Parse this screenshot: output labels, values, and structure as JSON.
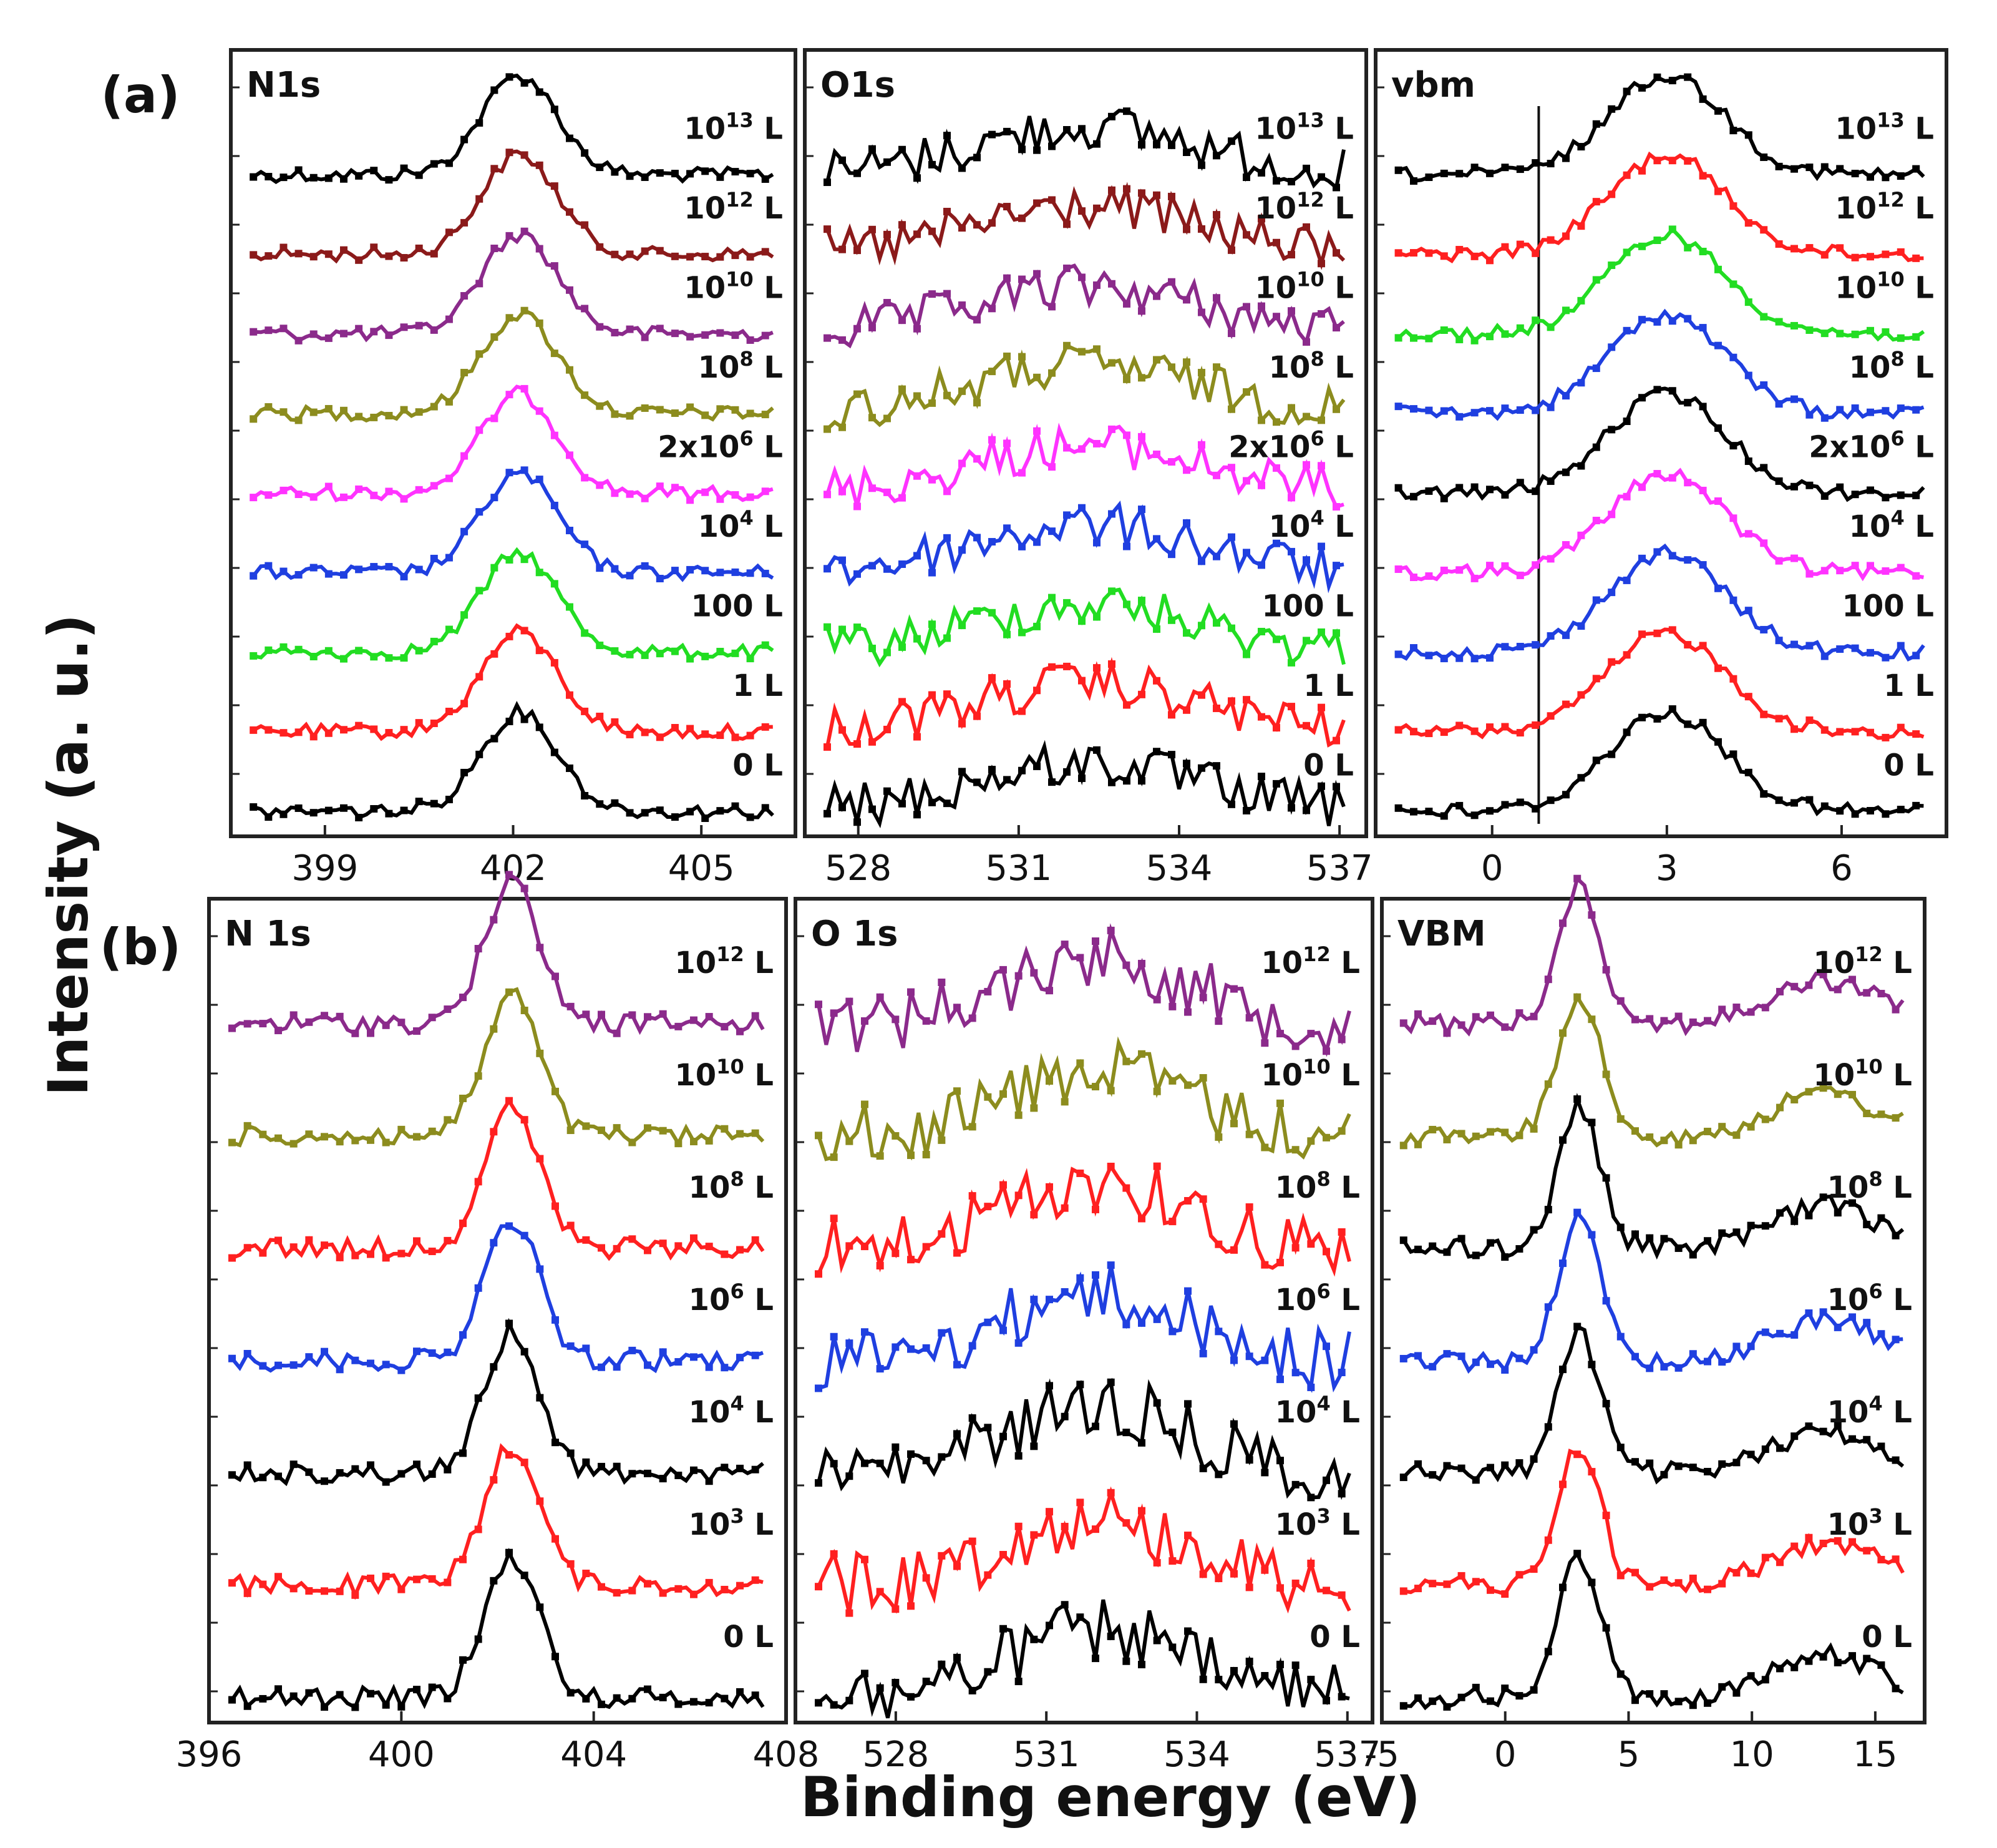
{
  "figure": {
    "xlabel": "Binding energy (eV)",
    "ylabel": "Intensity (a. u.)"
  },
  "chart_data": [
    {
      "type": "line",
      "row": "(a)",
      "title": "N1s",
      "xlim": [
        397.5,
        406.5
      ],
      "xticks": [
        399,
        402,
        405
      ],
      "center": 402.1,
      "width": 0.85,
      "shoulder": 0,
      "series": [
        {
          "name": "10^13 L",
          "color": "#000000"
        },
        {
          "name": "10^12 L",
          "color": "#8b1a1a"
        },
        {
          "name": "10^10 L",
          "color": "#8b2a8b"
        },
        {
          "name": "10^8 L",
          "color": "#8c8c1e"
        },
        {
          "name": "2x10^6 L",
          "color": "#ff33ff"
        },
        {
          "name": "10^4 L",
          "color": "#1f3fe0"
        },
        {
          "name": "100 L",
          "color": "#22dd22"
        },
        {
          "name": "1 L",
          "color": "#ff2020"
        },
        {
          "name": "0 L",
          "color": "#000000"
        }
      ]
    },
    {
      "type": "line",
      "row": "(a)",
      "title": "O1s",
      "xlim": [
        527,
        537.5
      ],
      "xticks": [
        528,
        531,
        534,
        537
      ],
      "center": 532.3,
      "width": 3.0,
      "shoulder": 0,
      "series": [
        {
          "name": "10^13 L",
          "color": "#000000"
        },
        {
          "name": "10^12 L",
          "color": "#8b1a1a"
        },
        {
          "name": "10^10 L",
          "color": "#8b2a8b"
        },
        {
          "name": "10^8 L",
          "color": "#8c8c1e"
        },
        {
          "name": "2x10^6 L",
          "color": "#ff33ff"
        },
        {
          "name": "10^4 L",
          "color": "#1f3fe0"
        },
        {
          "name": "100 L",
          "color": "#22dd22"
        },
        {
          "name": "1 L",
          "color": "#ff2020"
        },
        {
          "name": "0 L",
          "color": "#000000"
        }
      ]
    },
    {
      "type": "line",
      "row": "(a)",
      "title": "vbm",
      "xlim": [
        -2,
        7.8
      ],
      "xticks": [
        0,
        3,
        6
      ],
      "center": 3.0,
      "width": 1.4,
      "shoulder": 0,
      "vline": 0.8,
      "series": [
        {
          "name": "10^13 L",
          "color": "#000000"
        },
        {
          "name": "10^12 L",
          "color": "#ff2020"
        },
        {
          "name": "10^10 L",
          "color": "#22dd22"
        },
        {
          "name": "10^8 L",
          "color": "#1f3fe0"
        },
        {
          "name": "2x10^6 L",
          "color": "#000000"
        },
        {
          "name": "10^4 L",
          "color": "#ff33ff"
        },
        {
          "name": "100 L",
          "color": "#1f3fe0"
        },
        {
          "name": "1 L",
          "color": "#ff2020"
        },
        {
          "name": "0 L",
          "color": "#000000"
        }
      ]
    },
    {
      "type": "line",
      "row": "(b)",
      "title": "N 1s",
      "xlim": [
        396,
        408
      ],
      "xticks": [
        396,
        400,
        404,
        408
      ],
      "center": 402.3,
      "width": 0.8,
      "shoulder": 0,
      "series": [
        {
          "name": "10^12 L",
          "color": "#8b2a8b"
        },
        {
          "name": "10^10 L",
          "color": "#8c8c1e"
        },
        {
          "name": "10^8 L",
          "color": "#ff2020"
        },
        {
          "name": "10^6 L",
          "color": "#1f3fe0"
        },
        {
          "name": "10^4 L",
          "color": "#000000"
        },
        {
          "name": "10^3 L",
          "color": "#ff2020"
        },
        {
          "name": "0 L",
          "color": "#000000"
        }
      ]
    },
    {
      "type": "line",
      "row": "(b)",
      "title": "O 1s",
      "xlim": [
        526,
        537.5
      ],
      "xticks": [
        528,
        531,
        534,
        537
      ],
      "center": 532,
      "width": 2.5,
      "shoulder": 0,
      "series": [
        {
          "name": "10^12 L",
          "color": "#8b2a8b"
        },
        {
          "name": "10^10 L",
          "color": "#8c8c1e"
        },
        {
          "name": "10^8 L",
          "color": "#ff2020"
        },
        {
          "name": "10^6 L",
          "color": "#1f3fe0"
        },
        {
          "name": "10^4 L",
          "color": "#000000"
        },
        {
          "name": "10^3 L",
          "color": "#ff2020"
        },
        {
          "name": "0 L",
          "color": "#000000"
        }
      ]
    },
    {
      "type": "line",
      "row": "(b)",
      "title": "VBM",
      "xlim": [
        -5,
        17
      ],
      "xticks": [
        -5,
        0,
        5,
        10,
        15
      ],
      "center": 3.0,
      "width": 1.2,
      "shoulder": 13,
      "series": [
        {
          "name": "10^12 L",
          "color": "#8b2a8b"
        },
        {
          "name": "10^10 L",
          "color": "#8c8c1e"
        },
        {
          "name": "10^8 L",
          "color": "#000000"
        },
        {
          "name": "10^6 L",
          "color": "#1f3fe0"
        },
        {
          "name": "10^4 L",
          "color": "#000000"
        },
        {
          "name": "10^3 L",
          "color": "#ff2020"
        },
        {
          "name": "0 L",
          "color": "#000000"
        }
      ]
    }
  ]
}
